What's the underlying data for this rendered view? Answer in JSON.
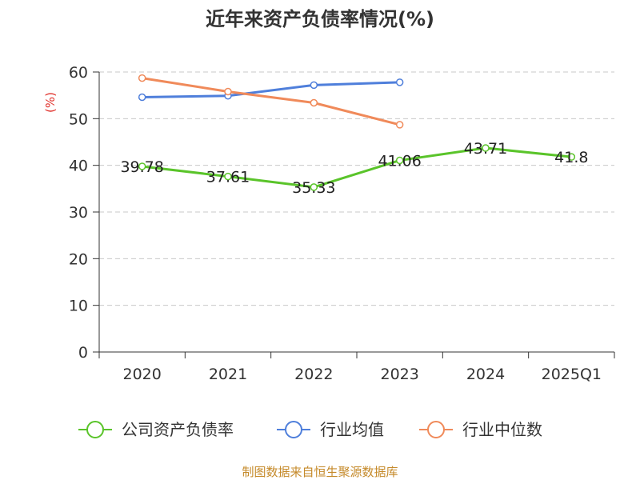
{
  "chart_data": {
    "type": "line",
    "title": "近年来资产负债率情况(%)",
    "ylabel": "(%)",
    "xlabel": "",
    "categories": [
      "2020",
      "2021",
      "2022",
      "2023",
      "2024",
      "2025Q1"
    ],
    "ylim": [
      0,
      60
    ],
    "yticks": [
      0,
      10,
      20,
      30,
      40,
      50,
      60
    ],
    "grid": true,
    "legend_position": "bottom",
    "series": [
      {
        "name": "公司资产负债率",
        "color": "#5ac42a",
        "values": [
          39.78,
          37.61,
          35.33,
          41.06,
          43.71,
          41.8
        ],
        "labels": [
          "39.78",
          "37.61",
          "35.33",
          "41.06",
          "43.71",
          "41.8"
        ]
      },
      {
        "name": "行业均值",
        "color": "#4f7fdb",
        "values": [
          54.6,
          54.9,
          57.2,
          57.8,
          null,
          null
        ]
      },
      {
        "name": "行业中位数",
        "color": "#f08a5a",
        "values": [
          58.7,
          55.8,
          53.4,
          48.7,
          null,
          null
        ]
      }
    ]
  },
  "source_text": "制图数据来自恒生聚源数据库",
  "colors": {
    "source": "#c58a2a",
    "ylabel": "#e0302a",
    "axis": "#333333",
    "grid": "#c8c8c8"
  }
}
